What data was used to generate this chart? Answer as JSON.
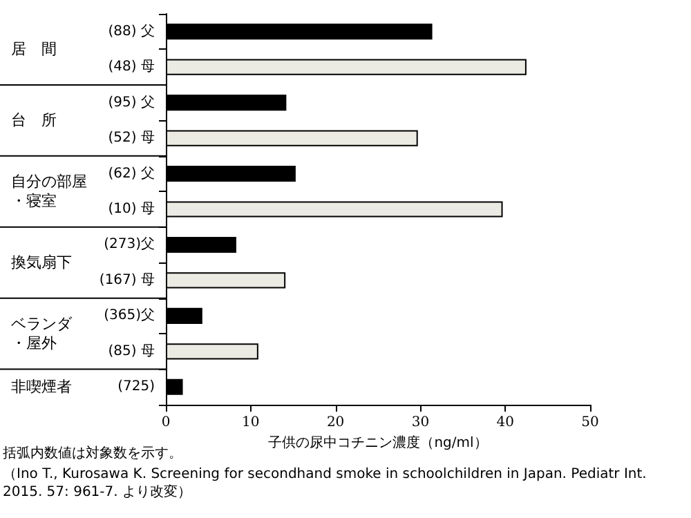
{
  "chart_data": {
    "type": "bar",
    "orientation": "horizontal",
    "xlabel": "子供の尿中コチニン濃度（ng/ml）",
    "categories": [
      "(88) 父",
      "(48) 母",
      "(95) 父",
      "(52) 母",
      "(62) 父",
      "(10) 母",
      "(273)父",
      "(167) 母",
      "(365)父",
      "(85) 母",
      "(725)"
    ],
    "values": [
      31.4,
      42.5,
      14.2,
      29.7,
      15.3,
      39.7,
      8.3,
      14.1,
      4.3,
      10.9,
      2.0
    ],
    "colors": [
      "#000000",
      "#ebebe3",
      "#000000",
      "#ebebe3",
      "#000000",
      "#ebebe3",
      "#000000",
      "#ebebe3",
      "#000000",
      "#ebebe3",
      "#000000"
    ],
    "xlim": [
      0,
      50
    ],
    "xticks": [
      0,
      10,
      20,
      30,
      40,
      50
    ],
    "grid": false,
    "annotations": [
      "居　間",
      "台　所",
      "自分の部屋・寝室",
      "換気扇下",
      "ベランダ・屋外",
      "非喫煙者",
      "括弧内数値は対象数を示す。",
      "（Ino T., Kurosawa K. Screening for secondhand smoke in schoolchildren in Japan. Pediatr Int. 2015. 57: 961-7. より改変）"
    ]
  }
}
